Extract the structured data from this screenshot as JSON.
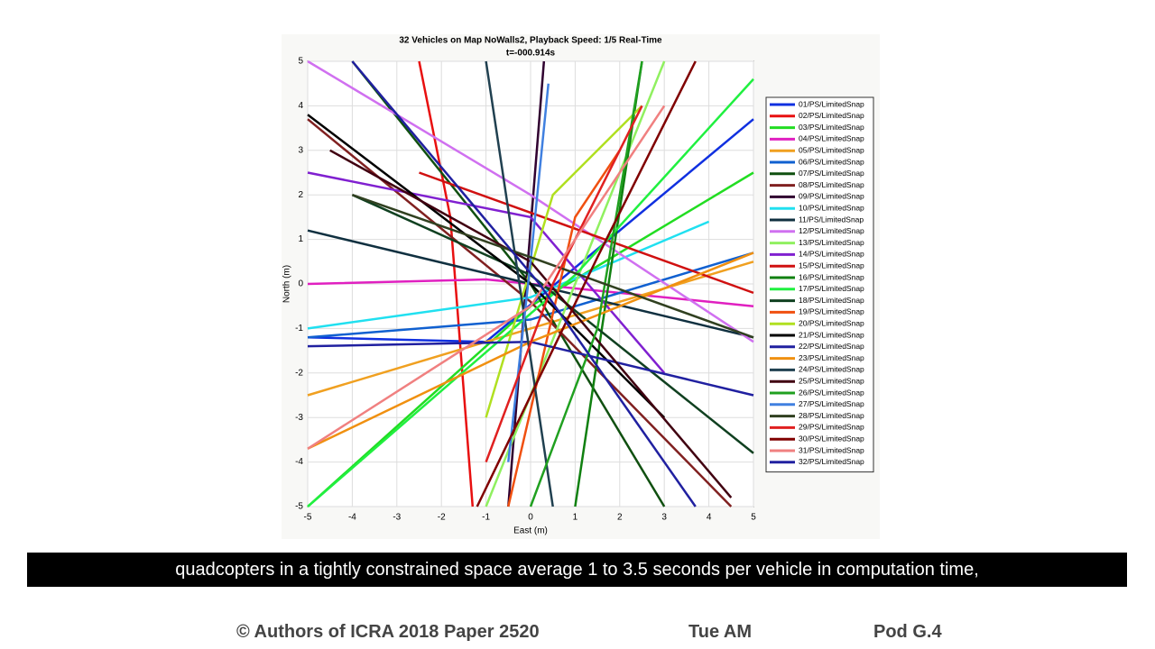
{
  "chart_data": {
    "type": "line",
    "title": "32 Vehicles on Map NoWalls2, Playback Speed: 1/5 Real-Time",
    "subtitle": "t=-000.914s",
    "x_label": "East (m)",
    "y_label": "North (m)",
    "xlim": [
      -5,
      5
    ],
    "ylim": [
      -5,
      5
    ],
    "xticks": [
      -5,
      -4,
      -3,
      -2,
      -1,
      0,
      1,
      2,
      3,
      4,
      5
    ],
    "yticks": [
      -5,
      -4,
      -3,
      -2,
      -1,
      0,
      1,
      2,
      3,
      4,
      5
    ],
    "grid": true,
    "legend": "right",
    "series": [
      {
        "name": "01/PS/LimitedSnap",
        "color": "#1030e0",
        "x": [
          -5,
          -1,
          5
        ],
        "values": [
          -1.2,
          -1.3,
          3.7
        ]
      },
      {
        "name": "02/PS/LimitedSnap",
        "color": "#e81010",
        "x": [
          -2.5,
          -1.8,
          -1.3
        ],
        "values": [
          5,
          1.5,
          -5
        ]
      },
      {
        "name": "03/PS/LimitedSnap",
        "color": "#22dd22",
        "x": [
          -5,
          0,
          5
        ],
        "values": [
          -5,
          -0.5,
          2.5
        ]
      },
      {
        "name": "04/PS/LimitedSnap",
        "color": "#e020c0",
        "x": [
          -5,
          -1,
          5
        ],
        "values": [
          0,
          0.1,
          -0.5
        ]
      },
      {
        "name": "05/PS/LimitedSnap",
        "color": "#f0a020",
        "x": [
          -5,
          0,
          5
        ],
        "values": [
          -2.5,
          -1,
          0.5
        ]
      },
      {
        "name": "06/PS/LimitedSnap",
        "color": "#1060d0",
        "x": [
          -5,
          0,
          5
        ],
        "values": [
          -1.2,
          -0.8,
          0.7
        ]
      },
      {
        "name": "07/PS/LimitedSnap",
        "color": "#105010",
        "x": [
          -4,
          0,
          3
        ],
        "values": [
          5,
          0,
          -5
        ]
      },
      {
        "name": "08/PS/LimitedSnap",
        "color": "#802020",
        "x": [
          -5,
          0,
          4.5
        ],
        "values": [
          3.7,
          -0.4,
          -5
        ]
      },
      {
        "name": "09/PS/LimitedSnap",
        "color": "#300030",
        "x": [
          -0.5,
          0.3
        ],
        "values": [
          -5,
          5
        ]
      },
      {
        "name": "10/PS/LimitedSnap",
        "color": "#20e0f0",
        "x": [
          -5,
          0,
          4
        ],
        "values": [
          -1,
          -0.3,
          1.4
        ]
      },
      {
        "name": "11/PS/LimitedSnap",
        "color": "#103040",
        "x": [
          -5,
          0,
          5
        ],
        "values": [
          1.2,
          0,
          -1.2
        ]
      },
      {
        "name": "12/PS/LimitedSnap",
        "color": "#d070f0",
        "x": [
          -5,
          0,
          5
        ],
        "values": [
          5,
          2,
          -1.3
        ]
      },
      {
        "name": "13/PS/LimitedSnap",
        "color": "#90f060",
        "x": [
          -1,
          1,
          3
        ],
        "values": [
          -5,
          0,
          5
        ]
      },
      {
        "name": "14/PS/LimitedSnap",
        "color": "#8020d0",
        "x": [
          -5,
          0,
          3
        ],
        "values": [
          2.5,
          1.5,
          -2
        ]
      },
      {
        "name": "15/PS/LimitedSnap",
        "color": "#d01010",
        "x": [
          -2.5,
          0,
          5
        ],
        "values": [
          2.5,
          1.6,
          -0.2
        ]
      },
      {
        "name": "16/PS/LimitedSnap",
        "color": "#108010",
        "x": [
          1,
          2.5
        ],
        "values": [
          -5,
          5
        ]
      },
      {
        "name": "17/PS/LimitedSnap",
        "color": "#20f040",
        "x": [
          -5,
          1,
          5
        ],
        "values": [
          -5,
          0.2,
          4.6
        ]
      },
      {
        "name": "18/PS/LimitedSnap",
        "color": "#104020",
        "x": [
          -4,
          0,
          5
        ],
        "values": [
          2,
          0.2,
          -3.8
        ]
      },
      {
        "name": "19/PS/LimitedSnap",
        "color": "#f05010",
        "x": [
          -0.5,
          1,
          2
        ],
        "values": [
          -5,
          1.5,
          3
        ]
      },
      {
        "name": "20/PS/LimitedSnap",
        "color": "#b0e020",
        "x": [
          -1,
          0.5,
          2.5
        ],
        "values": [
          -3,
          2,
          4
        ]
      },
      {
        "name": "21/PS/LimitedSnap",
        "color": "#000000",
        "x": [
          -5,
          0,
          3
        ],
        "values": [
          3.8,
          0,
          -3
        ]
      },
      {
        "name": "22/PS/LimitedSnap",
        "color": "#2020a0",
        "x": [
          -5,
          0,
          5
        ],
        "values": [
          -1.4,
          -1.3,
          -2.5
        ]
      },
      {
        "name": "23/PS/LimitedSnap",
        "color": "#f09010",
        "x": [
          -5,
          0,
          5
        ],
        "values": [
          -3.7,
          -1.3,
          0.7
        ]
      },
      {
        "name": "24/PS/LimitedSnap",
        "color": "#204050",
        "x": [
          -1,
          0.5
        ],
        "values": [
          5,
          -5
        ]
      },
      {
        "name": "25/PS/LimitedSnap",
        "color": "#400010",
        "x": [
          -4.5,
          0,
          4.5
        ],
        "values": [
          3,
          0.5,
          -4.8
        ]
      },
      {
        "name": "26/PS/LimitedSnap",
        "color": "#20a020",
        "x": [
          0,
          1.5,
          2.5
        ],
        "values": [
          -5,
          -1,
          5
        ]
      },
      {
        "name": "27/PS/LimitedSnap",
        "color": "#4080e0",
        "x": [
          -0.5,
          0,
          0.4
        ],
        "values": [
          -4,
          0.5,
          4.5
        ]
      },
      {
        "name": "28/PS/LimitedSnap",
        "color": "#304020",
        "x": [
          -4,
          0,
          5
        ],
        "values": [
          2,
          0.6,
          -1.2
        ]
      },
      {
        "name": "29/PS/LimitedSnap",
        "color": "#e02020",
        "x": [
          -1,
          0.5,
          2.5
        ],
        "values": [
          -4,
          0,
          4
        ]
      },
      {
        "name": "30/PS/LimitedSnap",
        "color": "#800000",
        "x": [
          -1.2,
          1.5,
          3.7
        ],
        "values": [
          -5,
          0.6,
          5
        ]
      },
      {
        "name": "31/PS/LimitedSnap",
        "color": "#f08080",
        "x": [
          -5,
          0,
          3
        ],
        "values": [
          -3.7,
          -0.5,
          4
        ]
      },
      {
        "name": "32/PS/LimitedSnap",
        "color": "#2020a0",
        "x": [
          -4,
          0.2,
          3.7
        ],
        "values": [
          5,
          0,
          -5
        ]
      }
    ]
  },
  "caption": "quadcopters in a tightly constrained space average 1 to 3.5 seconds per vehicle in computation time,",
  "footer": [
    "© Authors of ICRA 2018 Paper 2520",
    "Tue AM",
    "Pod G.4"
  ]
}
